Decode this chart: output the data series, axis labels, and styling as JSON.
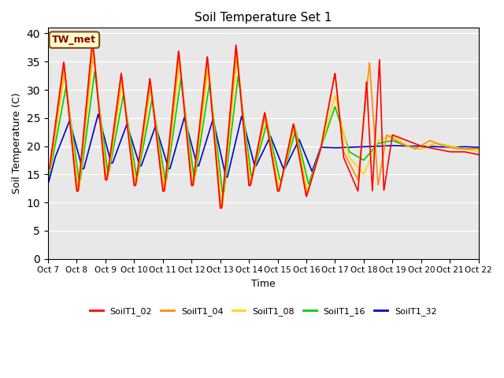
{
  "title": "Soil Temperature Set 1",
  "xlabel": "Time",
  "ylabel": "Soil Temperature (C)",
  "ylim": [
    0,
    41
  ],
  "yticks": [
    0,
    5,
    10,
    15,
    20,
    25,
    30,
    35,
    40
  ],
  "annotation_text": "TW_met",
  "annotation_color": "#8B0000",
  "annotation_bg": "#FFFFCC",
  "annotation_border": "#8B4513",
  "series_colors": {
    "SoilT1_02": "#FF0000",
    "SoilT1_04": "#FF8C00",
    "SoilT1_08": "#FFD700",
    "SoilT1_16": "#00CC00",
    "SoilT1_32": "#0000CC"
  },
  "xtick_labels": [
    "Oct 7",
    "Oct 8",
    "Oct 9",
    "Oct 10",
    "Oct 11",
    "Oct 12",
    "Oct 13",
    "Oct 14",
    "Oct 15",
    "Oct 16",
    "Oct 17",
    "Oct 18",
    "Oct 19",
    "Oct 20",
    "Oct 21",
    "Oct 22"
  ],
  "bg_color": "#E8E8E8",
  "grid_color": "white",
  "linewidth": 1.2
}
